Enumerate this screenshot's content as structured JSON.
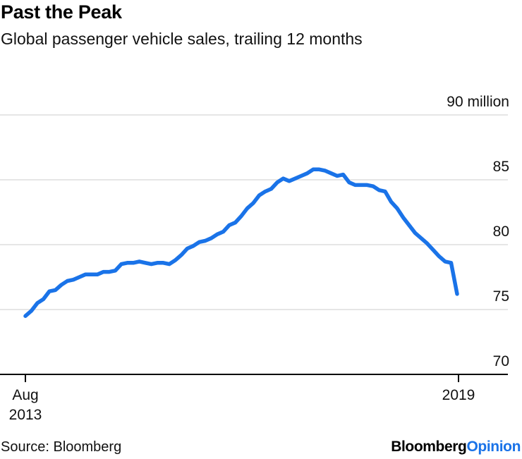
{
  "header": {
    "title": "Past the Peak",
    "subtitle": "Global passenger vehicle sales, trailing 12 months"
  },
  "footer": {
    "source": "Source: Bloomberg",
    "logo_part1": "Bloomberg",
    "logo_part2": "Opinion"
  },
  "colors": {
    "line": "#1a73e8",
    "grid": "#e6e6e6",
    "axis": "#000000",
    "logo_accent": "#1a73e8"
  },
  "chart_data": {
    "type": "line",
    "title": "Past the Peak",
    "subtitle": "Global passenger vehicle sales, trailing 12 months",
    "xlabel": "",
    "ylabel": "",
    "unit": "million",
    "ylim": [
      70,
      90
    ],
    "y_ticks": [
      {
        "value": 90,
        "label": "90 million"
      },
      {
        "value": 85,
        "label": "85"
      },
      {
        "value": 80,
        "label": "80"
      },
      {
        "value": 75,
        "label": "75"
      },
      {
        "value": 70,
        "label": "70"
      }
    ],
    "x_range": [
      "2013-08",
      "2019-03"
    ],
    "x_ticks": [
      {
        "index": 0,
        "label_line1": "Aug",
        "label_line2": "2013"
      },
      {
        "index": 69,
        "label_line1": "2019",
        "label_line2": ""
      }
    ],
    "grid": true,
    "legend": "none",
    "series": [
      {
        "name": "Global passenger vehicle sales (trailing 12 months)",
        "values": [
          74.5,
          74.9,
          75.5,
          75.8,
          76.4,
          76.5,
          76.9,
          77.2,
          77.3,
          77.5,
          77.7,
          77.7,
          77.7,
          77.9,
          77.9,
          78.0,
          78.5,
          78.6,
          78.6,
          78.7,
          78.6,
          78.5,
          78.6,
          78.6,
          78.5,
          78.8,
          79.2,
          79.7,
          79.9,
          80.2,
          80.3,
          80.5,
          80.8,
          81.0,
          81.5,
          81.7,
          82.2,
          82.8,
          83.2,
          83.8,
          84.1,
          84.3,
          84.8,
          85.1,
          84.9,
          85.1,
          85.3,
          85.5,
          85.8,
          85.8,
          85.7,
          85.5,
          85.3,
          85.4,
          84.8,
          84.6,
          84.6,
          84.6,
          84.5,
          84.2,
          84.1,
          83.3,
          82.8,
          82.1,
          81.5,
          80.9,
          80.5,
          80.1,
          79.6,
          79.1,
          78.7,
          78.6,
          76.2
        ]
      }
    ]
  }
}
